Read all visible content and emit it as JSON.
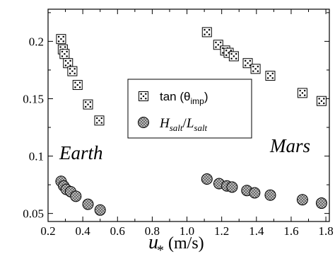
{
  "chart_data": {
    "type": "scatter",
    "xlabel": "u",
    "xlabel_subscript": "*",
    "xlabel_unit": " (m/s)",
    "xlim": [
      0.2,
      1.82
    ],
    "ylim": [
      0.043,
      0.228
    ],
    "xticks": [
      "0.2",
      "0.4",
      "0.6",
      "0.8",
      "1.0",
      "1.2",
      "1.4",
      "1.6",
      "1.8"
    ],
    "xtick_values": [
      0.2,
      0.4,
      0.6,
      0.8,
      1.0,
      1.2,
      1.4,
      1.6,
      1.8
    ],
    "yticks": [
      "0.05",
      "0.1",
      "0.15",
      "0.2"
    ],
    "ytick_values": [
      0.05,
      0.1,
      0.15,
      0.2
    ],
    "grid": false,
    "legend_position": "center",
    "annotations": {
      "earth": "Earth",
      "mars": "Mars"
    },
    "series": [
      {
        "name": "tan (θimp)",
        "legend_main": "tan (θ",
        "legend_sub": "imp",
        "legend_end": ")",
        "marker": "dotted-square",
        "points": [
          [
            0.275,
            0.202
          ],
          [
            0.285,
            0.193
          ],
          [
            0.295,
            0.189
          ],
          [
            0.315,
            0.181
          ],
          [
            0.34,
            0.174
          ],
          [
            0.37,
            0.162
          ],
          [
            0.43,
            0.145
          ],
          [
            0.495,
            0.131
          ],
          [
            1.115,
            0.208
          ],
          [
            1.18,
            0.197
          ],
          [
            1.22,
            0.192
          ],
          [
            1.24,
            0.19
          ],
          [
            1.27,
            0.187
          ],
          [
            1.35,
            0.181
          ],
          [
            1.395,
            0.176
          ],
          [
            1.48,
            0.17
          ],
          [
            1.665,
            0.155
          ],
          [
            1.775,
            0.148
          ]
        ]
      },
      {
        "name": "Hsalt/Lsalt",
        "legend_h": "H",
        "legend_hsub": "salt",
        "legend_slash": "/",
        "legend_l": "L",
        "legend_lsub": "salt",
        "marker": "hatched-circle",
        "points": [
          [
            0.275,
            0.078
          ],
          [
            0.29,
            0.074
          ],
          [
            0.305,
            0.071
          ],
          [
            0.33,
            0.069
          ],
          [
            0.36,
            0.065
          ],
          [
            0.43,
            0.058
          ],
          [
            0.5,
            0.053
          ],
          [
            1.115,
            0.08
          ],
          [
            1.185,
            0.076
          ],
          [
            1.23,
            0.074
          ],
          [
            1.26,
            0.073
          ],
          [
            1.345,
            0.07
          ],
          [
            1.39,
            0.068
          ],
          [
            1.48,
            0.066
          ],
          [
            1.665,
            0.062
          ],
          [
            1.775,
            0.059
          ]
        ]
      }
    ]
  }
}
